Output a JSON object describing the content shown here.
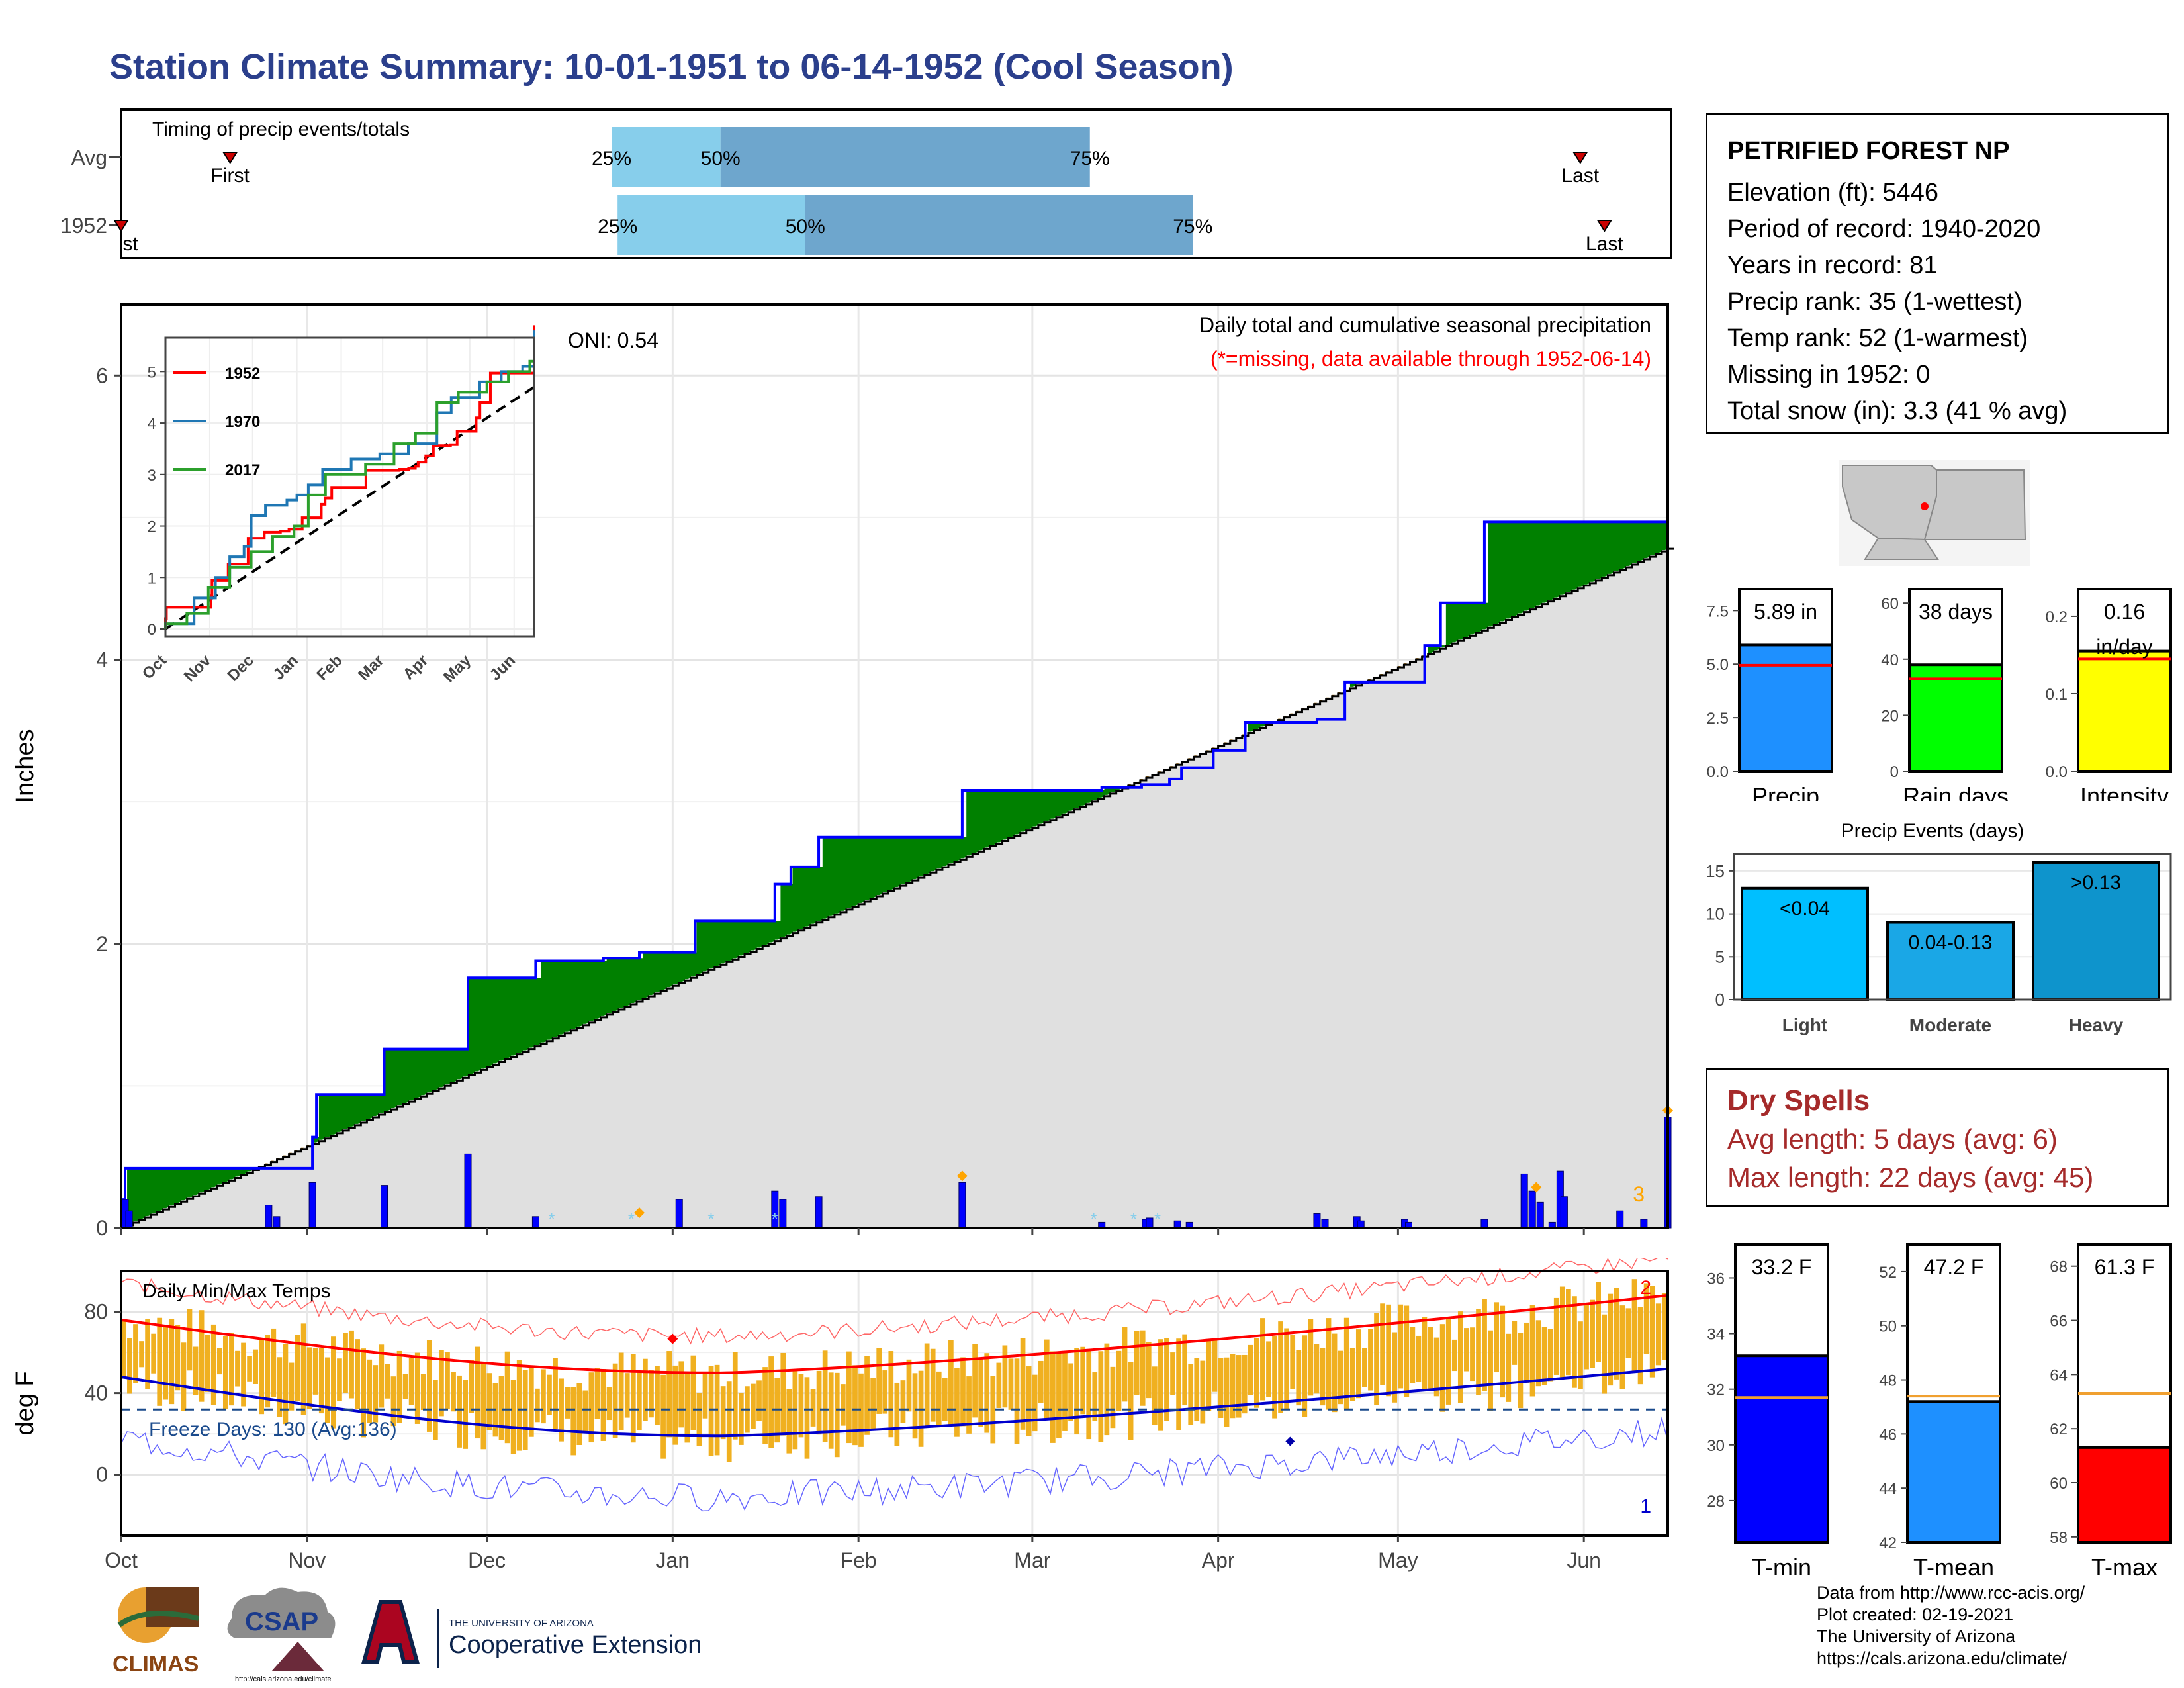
{
  "title": "Station Climate Summary: 10-01-1951 to 06-14-1952 (Cool Season)",
  "colors": {
    "title": "#2b3f8c",
    "q1": "#87ceeb",
    "q2": "#6ea6cd",
    "above": "#008000",
    "below": "#8b5a00",
    "climo": "#e0e0e0",
    "precip_bar": "#0000ff",
    "temp_bar": "#f0b020",
    "tmax": "#ff0000",
    "tmin": "#0000cd",
    "dry": "#a52a2a"
  },
  "station": {
    "name": "PETRIFIED FOREST NP",
    "lines": [
      "Elevation (ft): 5446",
      "Period of record: 1940-2020",
      "Years in record: 81",
      "Precip rank: 35 (1-wettest)",
      "Temp rank: 52 (1-warmest)",
      "Missing in 1952: 0",
      "Total snow (in): 3.3 (41 % avg)"
    ]
  },
  "dry_spells": {
    "title": "Dry Spells",
    "avg": "Avg length: 5 days (avg: 6)",
    "max": "Max length: 22 days (avg: 45)"
  },
  "credits": [
    "Data from http://www.rcc-acis.org/",
    "Plot created: 02-19-2021",
    "The University of Arizona",
    "https://cals.arizona.edu/climate/"
  ],
  "logos": {
    "climas": "CLIMAS",
    "csap": "CSAP",
    "csap_url": "http://cals.arizona.edu/climate",
    "ua_small": "THE UNIVERSITY OF ARIZONA",
    "ua_big": "Cooperative Extension"
  },
  "chart_data": [
    {
      "type": "bar",
      "name": "timing",
      "title": "Timing of precip events/totals",
      "rows": [
        {
          "label": "Avg",
          "first": "Oct 19",
          "q25": "Dec 21",
          "q50": "Jan 8",
          "q75": "Mar 9",
          "last": "May 29"
        },
        {
          "label": "1952",
          "first": "Oct 1",
          "q25": "Dec 22",
          "q50": "Jan 22",
          "q75": "Mar 26",
          "last": "Jun 2"
        }
      ],
      "labels": {
        "q25": "25%",
        "q50": "50%",
        "q75": "75%",
        "first": "First",
        "last": "Last",
        "first_cut": "st"
      }
    },
    {
      "type": "area",
      "name": "precipitation",
      "title": "Daily total and cumulative seasonal precipitation",
      "missing_note": "(*=missing, data available through 1952-06-14)",
      "oni": "ONI: 0.54",
      "ylabel": "Inches",
      "ylim": [
        0,
        6.5
      ],
      "yticks": [
        "0",
        "2",
        "4",
        "6"
      ],
      "xticks": [
        "Oct",
        "Nov",
        "Dec",
        "Jan",
        "Feb",
        "Mar",
        "Apr",
        "May",
        "Jun"
      ],
      "corner_label": "3",
      "cumulative_steps": [
        [
          0,
          0.2
        ],
        [
          1,
          0.42
        ],
        [
          25,
          0.42
        ],
        [
          48,
          0.64
        ],
        [
          49,
          0.94
        ],
        [
          66,
          1.26
        ],
        [
          87,
          1.76
        ],
        [
          104,
          1.88
        ],
        [
          121,
          1.9
        ],
        [
          130,
          1.94
        ],
        [
          144,
          2.16
        ],
        [
          164,
          2.42
        ],
        [
          168,
          2.54
        ],
        [
          175,
          2.75
        ],
        [
          211,
          3.08
        ],
        [
          246,
          3.1
        ],
        [
          256,
          3.12
        ],
        [
          263,
          3.16
        ],
        [
          266,
          3.24
        ],
        [
          274,
          3.36
        ],
        [
          282,
          3.56
        ],
        [
          300,
          3.58
        ],
        [
          307,
          3.84
        ],
        [
          327,
          4.1
        ],
        [
          331,
          4.4
        ],
        [
          342,
          4.97
        ],
        [
          388,
          5.9
        ]
      ],
      "climo_end": 4.78,
      "daily_bars": [
        [
          1,
          0.2
        ],
        [
          2,
          0.12
        ],
        [
          37,
          0.16
        ],
        [
          39,
          0.08
        ],
        [
          48,
          0.32
        ],
        [
          66,
          0.3
        ],
        [
          87,
          0.52
        ],
        [
          104,
          0.08
        ],
        [
          140,
          0.2
        ],
        [
          164,
          0.26
        ],
        [
          166,
          0.2
        ],
        [
          175,
          0.22
        ],
        [
          211,
          0.32
        ],
        [
          246,
          0.04
        ],
        [
          257,
          0.06
        ],
        [
          258,
          0.07
        ],
        [
          265,
          0.05
        ],
        [
          268,
          0.04
        ],
        [
          376,
          0.12
        ],
        [
          300,
          0.1
        ],
        [
          302,
          0.06
        ],
        [
          310,
          0.08
        ],
        [
          311,
          0.05
        ],
        [
          322,
          0.06
        ],
        [
          323,
          0.04
        ],
        [
          342,
          0.06
        ],
        [
          359,
          0.04
        ],
        [
          382,
          0.06
        ],
        [
          352,
          0.38
        ],
        [
          354,
          0.26
        ],
        [
          356,
          0.18
        ],
        [
          361,
          0.4
        ],
        [
          362,
          0.22
        ],
        [
          388,
          0.78
        ]
      ],
      "snow_days": [
        108,
        128,
        148,
        164,
        244,
        254,
        260
      ],
      "inset": {
        "series": [
          {
            "name": "1952",
            "color": "#ff0000"
          },
          {
            "name": "1970",
            "color": "#1f77b4"
          },
          {
            "name": "2017",
            "color": "#2ca02c"
          }
        ],
        "yticks": [
          "0",
          "1",
          "2",
          "3",
          "4",
          "5"
        ],
        "xticks": [
          "Oct",
          "Nov",
          "Dec",
          "Jan",
          "Feb",
          "Mar",
          "Apr",
          "May",
          "Jun"
        ]
      }
    },
    {
      "type": "line",
      "name": "temperature",
      "title": "Daily Min/Max Temps",
      "ylabel": "deg F",
      "ylim": [
        -30,
        100
      ],
      "yticks": [
        "0",
        "40",
        "80"
      ],
      "xticks": [
        "Oct",
        "Nov",
        "Dec",
        "Jan",
        "Feb",
        "Mar",
        "Apr",
        "May",
        "Jun"
      ],
      "freeze_label": "Freeze Days: 130 (Avg:136)",
      "freeze_line": 32,
      "normal_max": {
        "start": 76,
        "dip": 50,
        "dip_day": 100,
        "end": 88
      },
      "normal_min": {
        "start": 48,
        "dip": 19,
        "dip_day": 100,
        "end": 52
      },
      "record_label_top": "2",
      "record_label_bottom": "1"
    },
    {
      "type": "bar",
      "name": "summary_bars",
      "panels": [
        {
          "label": "Precip",
          "value_label": "5.89 in",
          "value": 5.89,
          "normal": 4.95,
          "ylim": [
            0,
            8.5
          ],
          "yticks": [
            "0.0",
            "2.5",
            "5.0",
            "7.5"
          ],
          "color": "#1e90ff"
        },
        {
          "label": "Rain days",
          "value_label": "38 days",
          "value": 38,
          "normal": 33,
          "ylim": [
            0,
            65
          ],
          "yticks": [
            "0",
            "20",
            "40",
            "60"
          ],
          "color": "#00ff00"
        },
        {
          "label": "Intensity",
          "value_label": "0.16",
          "value_label2": "in/day",
          "value": 0.155,
          "normal": 0.145,
          "ylim": [
            0,
            0.235
          ],
          "yticks": [
            "0.0",
            "0.1",
            "0.2"
          ],
          "color": "#ffff00"
        }
      ]
    },
    {
      "type": "bar",
      "name": "precip_events",
      "title": "Precip Events (days)",
      "categories": [
        "Light",
        "Moderate",
        "Heavy"
      ],
      "bar_labels": [
        "<0.04",
        "0.04-0.13",
        ">0.13"
      ],
      "values": [
        13,
        9,
        16
      ],
      "ylim": [
        0,
        17
      ],
      "yticks": [
        "0",
        "5",
        "10",
        "15"
      ],
      "colors": [
        "#00bfff",
        "#1aa7e6",
        "#0e94cc"
      ]
    },
    {
      "type": "bar",
      "name": "temp_summary",
      "panels": [
        {
          "label": "T-min",
          "value_label": "33.2 F",
          "value": 33.2,
          "normal": 31.7,
          "ylim": [
            26.5,
            37.2
          ],
          "yticks": [
            "28",
            "30",
            "32",
            "34",
            "36"
          ],
          "color": "#0000ff",
          "normal_color": "#f0a030"
        },
        {
          "label": "T-mean",
          "value_label": "47.2 F",
          "value": 47.2,
          "normal": 47.4,
          "ylim": [
            42,
            53
          ],
          "yticks": [
            "42",
            "44",
            "46",
            "48",
            "50",
            "52"
          ],
          "color": "#1e90ff",
          "normal_color": "#f0a030"
        },
        {
          "label": "T-max",
          "value_label": "61.3 F",
          "value": 61.3,
          "normal": 63.3,
          "ylim": [
            57.8,
            68.8
          ],
          "yticks": [
            "58",
            "60",
            "62",
            "64",
            "66",
            "68"
          ],
          "color": "#ff0000",
          "normal_color": "#f0a030"
        }
      ]
    }
  ]
}
